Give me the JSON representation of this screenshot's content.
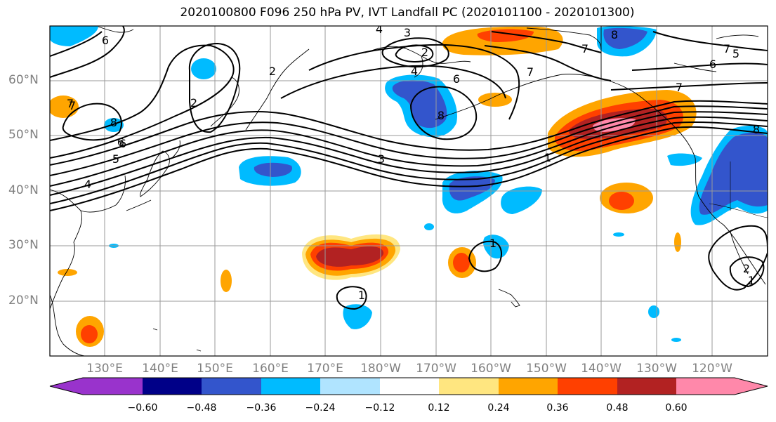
{
  "figure": {
    "title": "2020100800 F096 250 hPa PV, IVT Landfall PC (2020101100 - 2020101300)"
  },
  "axes": {
    "lat_labels": [
      "60°N",
      "50°N",
      "40°N",
      "30°N",
      "20°N"
    ],
    "lon_labels": [
      "130°E",
      "140°E",
      "150°E",
      "160°E",
      "170°E",
      "180°W",
      "170°W",
      "160°W",
      "150°W",
      "140°W",
      "130°W",
      "120°W"
    ],
    "grid": true
  },
  "colorbar": {
    "ticks": [
      "−0.60",
      "−0.48",
      "−0.36",
      "−0.24",
      "−0.12",
      "0.12",
      "0.24",
      "0.36",
      "0.48",
      "0.60"
    ],
    "colors": [
      "#9933cc",
      "#000088",
      "#3355cc",
      "#00bbff",
      "#b0e4ff",
      "#ffffff",
      "#ffe680",
      "#ffa500",
      "#ff4000",
      "#b22222",
      "#ff88aa"
    ],
    "extend": "both"
  },
  "contour_labels": [
    {
      "text": "6"
    },
    {
      "text": "7"
    },
    {
      "text": "6"
    },
    {
      "text": "2"
    },
    {
      "text": "3"
    },
    {
      "text": "4"
    },
    {
      "text": "2"
    },
    {
      "text": "4"
    },
    {
      "text": "6"
    },
    {
      "text": "7"
    },
    {
      "text": "8"
    },
    {
      "text": "3"
    },
    {
      "text": "7"
    },
    {
      "text": "8"
    },
    {
      "text": "7"
    },
    {
      "text": "5"
    },
    {
      "text": "6"
    },
    {
      "text": "7"
    },
    {
      "text": "1"
    },
    {
      "text": "8"
    },
    {
      "text": "7"
    },
    {
      "text": "6"
    },
    {
      "text": "4"
    },
    {
      "text": "8"
    },
    {
      "text": "1"
    },
    {
      "text": "1"
    },
    {
      "text": "2"
    },
    {
      "text": "1"
    },
    {
      "text": "5"
    },
    {
      "text": "2"
    }
  ]
}
